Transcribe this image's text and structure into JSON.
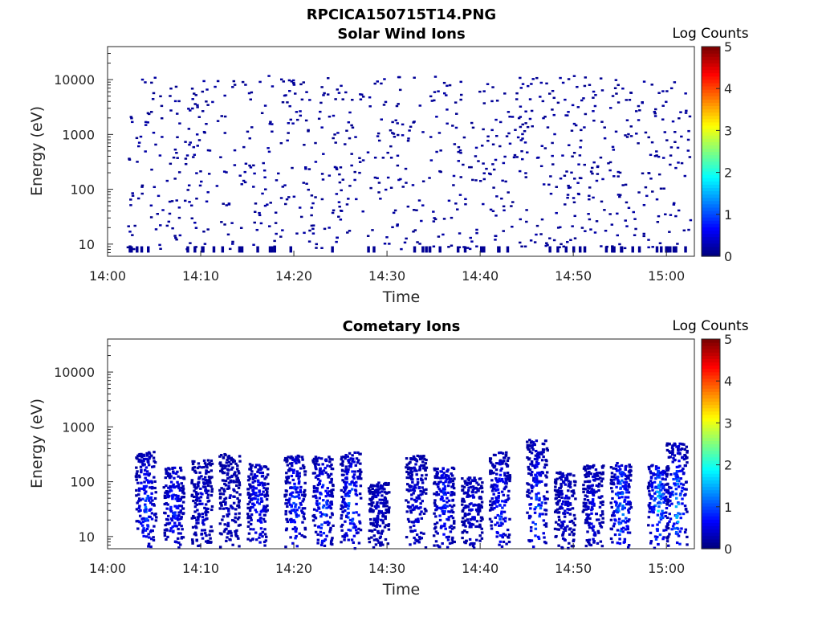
{
  "figure_title": "RPCICA150715T14.PNG",
  "chart_data": [
    {
      "type": "heatmap",
      "title": "Solar Wind Ions",
      "xlabel": "Time",
      "ylabel": "Energy (eV)",
      "x_ticks": [
        "14:00",
        "14:10",
        "14:20",
        "14:30",
        "14:40",
        "14:50",
        "15:00"
      ],
      "y_ticks": [
        "10",
        "100",
        "1000",
        "10000"
      ],
      "y_scale": "log",
      "xlim": [
        "14:00",
        "15:03"
      ],
      "ylim": [
        6,
        40000
      ],
      "colorbar": {
        "label": "Log Counts",
        "ticks": [
          "0",
          "1",
          "2",
          "3",
          "4",
          "5"
        ],
        "range": [
          0,
          5
        ],
        "colormap": "jet"
      },
      "color_value_range": [
        0,
        0.3
      ],
      "mostly_value": 0.1,
      "description_of_data": "sparse isolated single counts scattered between ~10 eV and ~12000 eV across the whole interval, starting ~14:02"
    },
    {
      "type": "heatmap",
      "title": "Cometary Ions",
      "xlabel": "Time",
      "ylabel": "Energy (eV)",
      "x_ticks": [
        "14:00",
        "14:10",
        "14:20",
        "14:30",
        "14:40",
        "14:50",
        "15:00"
      ],
      "y_ticks": [
        "10",
        "100",
        "1000",
        "10000"
      ],
      "y_scale": "log",
      "xlim": [
        "14:00",
        "15:03"
      ],
      "ylim": [
        6,
        40000
      ],
      "colorbar": {
        "label": "Log Counts",
        "ticks": [
          "0",
          "1",
          "2",
          "3",
          "4",
          "5"
        ],
        "range": [
          0,
          5
        ],
        "colormap": "jet"
      },
      "bursts": [
        {
          "t": "14:04",
          "emax": 350,
          "peak": 1.0
        },
        {
          "t": "14:07",
          "emax": 180,
          "peak": 0.8
        },
        {
          "t": "14:10",
          "emax": 250,
          "peak": 0.4
        },
        {
          "t": "14:13",
          "emax": 330,
          "peak": 0.3
        },
        {
          "t": "14:16",
          "emax": 220,
          "peak": 0.8
        },
        {
          "t": "14:20",
          "emax": 300,
          "peak": 1.0
        },
        {
          "t": "14:23",
          "emax": 290,
          "peak": 1.1
        },
        {
          "t": "14:26",
          "emax": 350,
          "peak": 1.3
        },
        {
          "t": "14:29",
          "emax": 100,
          "peak": 0.3
        },
        {
          "t": "14:33",
          "emax": 300,
          "peak": 0.5
        },
        {
          "t": "14:36",
          "emax": 180,
          "peak": 0.9
        },
        {
          "t": "14:39",
          "emax": 120,
          "peak": 0.4
        },
        {
          "t": "14:42",
          "emax": 350,
          "peak": 0.9
        },
        {
          "t": "14:46",
          "emax": 600,
          "peak": 1.2
        },
        {
          "t": "14:49",
          "emax": 150,
          "peak": 0.4
        },
        {
          "t": "14:52",
          "emax": 200,
          "peak": 0.5
        },
        {
          "t": "14:55",
          "emax": 220,
          "peak": 1.5
        },
        {
          "t": "14:59",
          "emax": 200,
          "peak": 1.7
        },
        {
          "t": "15:01",
          "emax": 500,
          "peak": 1.6
        }
      ]
    }
  ]
}
